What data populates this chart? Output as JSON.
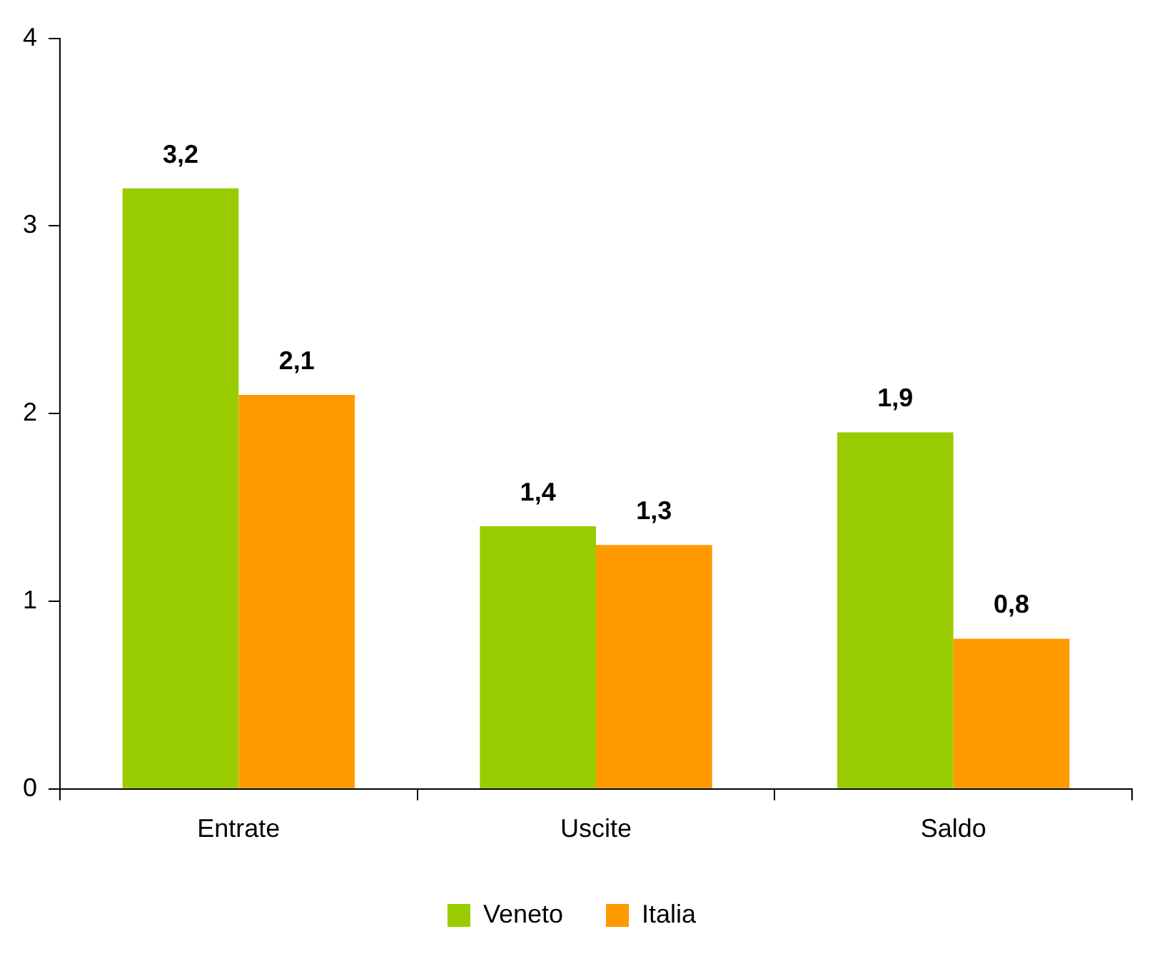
{
  "chart_data": {
    "type": "bar",
    "categories": [
      "Entrate",
      "Uscite",
      "Saldo"
    ],
    "series": [
      {
        "name": "Veneto",
        "color": "#99cc00",
        "values": [
          3.2,
          1.4,
          1.9
        ],
        "value_labels": [
          "3,2",
          "1,4",
          "1,9"
        ]
      },
      {
        "name": "Italia",
        "color": "#ff9900",
        "values": [
          2.1,
          1.3,
          0.8
        ],
        "value_labels": [
          "2,1",
          "1,3",
          "0,8"
        ]
      }
    ],
    "ylim": [
      0,
      4
    ],
    "yticks": [
      0,
      1,
      2,
      3,
      4
    ],
    "grid": false,
    "legend": "bottom"
  }
}
